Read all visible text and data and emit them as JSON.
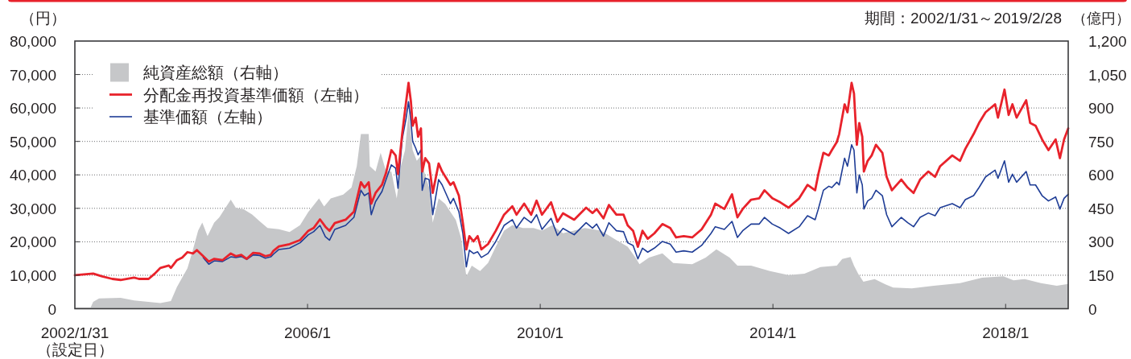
{
  "chart_data": {
    "type": "line",
    "subtitle": "期間：2002/1/31～2019/2/28",
    "ylabel": "（円）",
    "y2label": "（億円）",
    "annotations": [
      "（設定日）"
    ],
    "xlim": [
      "2002-01-31",
      "2019-02-28"
    ],
    "xticks": [
      {
        "value": "2002-01-31",
        "label": "2002/1/31"
      },
      {
        "value": "2006-01-31",
        "label": "2006/1"
      },
      {
        "value": "2010-01-31",
        "label": "2010/1"
      },
      {
        "value": "2014-01-31",
        "label": "2014/1"
      },
      {
        "value": "2018-01-31",
        "label": "2018/1"
      }
    ],
    "ylim": [
      0,
      80000
    ],
    "yticks": [
      0,
      {
        "value": 10000,
        "label": "10,000"
      },
      {
        "value": 20000,
        "label": "20,000"
      },
      {
        "value": 30000,
        "label": "30,000"
      },
      {
        "value": 40000,
        "label": "40,000"
      },
      {
        "value": 50000,
        "label": "50,000"
      },
      {
        "value": 60000,
        "label": "60,000"
      },
      {
        "value": 70000,
        "label": "70,000"
      },
      {
        "value": 80000,
        "label": "80,000"
      }
    ],
    "y2lim": [
      0,
      1200
    ],
    "y2ticks": [
      0,
      150,
      300,
      450,
      600,
      750,
      900,
      {
        "value": 1050,
        "label": "1,050"
      },
      {
        "value": 1200,
        "label": "1,200"
      }
    ],
    "grid": "y",
    "legend": "top left",
    "series": [
      {
        "name": "純資産総額（右軸）",
        "type": "area",
        "axis": "y2",
        "color": "#c6c7c9",
        "x": [
          "2002-01-31",
          "2002-05-10",
          "2002-05-26",
          "2002-07-02",
          "2002-11-14",
          "2003-02-07",
          "2003-07-22",
          "2003-09-26",
          "2003-11-03",
          "2004-01-08",
          "2004-02-12",
          "2004-03-15",
          "2004-04-10",
          "2004-05-13",
          "2004-06-24",
          "2004-07-26",
          "2004-10-06",
          "2004-11-07",
          "2004-12-26",
          "2005-02-17",
          "2005-04-06",
          "2005-05-25",
          "2005-08-04",
          "2005-10-10",
          "2005-12-15",
          "2006-02-05",
          "2006-04-13",
          "2006-05-15",
          "2006-06-26",
          "2006-09-12",
          "2006-11-03",
          "2006-12-06",
          "2007-01-01",
          "2007-02-19",
          "2007-02-26",
          "2007-04-03",
          "2007-05-05",
          "2007-06-08",
          "2007-07-11",
          "2007-08-14",
          "2007-09-09",
          "2007-10-05",
          "2007-10-27",
          "2007-11-22",
          "2007-12-18",
          "2008-01-13",
          "2008-02-02",
          "2008-03-04",
          "2008-03-27",
          "2008-05-03",
          "2008-06-13",
          "2008-07-16",
          "2008-08-19",
          "2008-09-22",
          "2008-10-24",
          "2008-11-27",
          "2009-01-18",
          "2009-03-09",
          "2009-04-27",
          "2009-06-18",
          "2009-08-09",
          "2009-10-14",
          "2009-12-20",
          "2010-02-11",
          "2010-04-17",
          "2010-06-23",
          "2010-11-07",
          "2011-02-16",
          "2011-05-24",
          "2011-08-03",
          "2011-09-21",
          "2011-10-16",
          "2011-12-15",
          "2012-03-08",
          "2012-05-15",
          "2012-09-11",
          "2012-12-05",
          "2013-02-10",
          "2013-05-04",
          "2013-06-22",
          "2013-09-16",
          "2014-01-12",
          "2014-05-09",
          "2014-08-17",
          "2014-11-26",
          "2015-03-08",
          "2015-04-11",
          "2015-06-02",
          "2015-06-24",
          "2015-07-20",
          "2015-08-22",
          "2015-11-01",
          "2016-01-07",
          "2016-02-25",
          "2016-06-21",
          "2016-11-06",
          "2017-04-20",
          "2017-09-05",
          "2018-01-17",
          "2018-03-22",
          "2018-06-01",
          "2018-09-10",
          "2018-12-18",
          "2019-02-28"
        ],
        "values": [
          5,
          5,
          31,
          46,
          49,
          37,
          25,
          34,
          97,
          181,
          266,
          350,
          386,
          326,
          386,
          410,
          489,
          452,
          446,
          422,
          392,
          362,
          356,
          344,
          374,
          434,
          494,
          458,
          494,
          512,
          543,
          639,
          783,
          783,
          639,
          615,
          699,
          615,
          615,
          494,
          639,
          711,
          880,
          711,
          663,
          687,
          615,
          543,
          386,
          494,
          470,
          434,
          398,
          314,
          145,
          193,
          169,
          205,
          278,
          350,
          374,
          362,
          362,
          350,
          374,
          338,
          362,
          350,
          308,
          278,
          229,
          199,
          229,
          248,
          205,
          199,
          229,
          266,
          229,
          193,
          193,
          169,
          151,
          157,
          187,
          193,
          223,
          232,
          193,
          157,
          121,
          133,
          109,
          95,
          91,
          103,
          115,
          139,
          145,
          127,
          133,
          115,
          103,
          111
        ]
      },
      {
        "name": "分配金再投資基準価額（左軸）",
        "color": "#e8222b",
        "x": [
          "2002-01-31",
          "2002-05-26",
          "2002-07-17",
          "2002-09-23",
          "2002-11-14",
          "2003-02-07",
          "2003-03-09",
          "2003-05-09",
          "2003-06-17",
          "2003-07-22",
          "2003-09-13",
          "2003-09-26",
          "2003-11-03",
          "2003-12-06",
          "2004-01-08",
          "2004-02-12",
          "2004-03-07",
          "2004-04-16",
          "2004-05-21",
          "2004-06-24",
          "2004-08-15",
          "2004-10-06",
          "2004-11-07",
          "2004-12-11",
          "2005-01-14",
          "2005-02-24",
          "2005-04-06",
          "2005-05-11",
          "2005-06-14",
          "2005-07-01",
          "2005-08-04",
          "2005-10-10",
          "2005-12-15",
          "2006-02-05",
          "2006-03-10",
          "2006-04-19",
          "2006-05-23",
          "2006-06-18",
          "2006-07-21",
          "2006-09-27",
          "2006-11-18",
          "2007-01-01",
          "2007-01-23",
          "2007-02-19",
          "2007-03-07",
          "2007-04-03",
          "2007-05-13",
          "2007-06-08",
          "2007-07-11",
          "2007-08-07",
          "2007-08-22",
          "2007-09-17",
          "2007-10-12",
          "2007-10-27",
          "2007-11-11",
          "2007-11-22",
          "2007-12-11",
          "2007-12-26",
          "2008-01-13",
          "2008-01-21",
          "2008-02-09",
          "2008-03-04",
          "2008-03-27",
          "2008-05-03",
          "2008-05-25",
          "2008-07-16",
          "2008-08-04",
          "2008-09-07",
          "2008-10-02",
          "2008-10-24",
          "2008-11-12",
          "2008-12-08",
          "2009-01-03",
          "2009-01-26",
          "2009-03-09",
          "2009-04-27",
          "2009-06-18",
          "2009-08-09",
          "2009-09-04",
          "2009-10-22",
          "2009-12-05",
          "2010-01-08",
          "2010-02-11",
          "2010-04-09",
          "2010-05-19",
          "2010-06-23",
          "2010-09-01",
          "2010-11-15",
          "2010-12-25",
          "2011-01-20",
          "2011-03-04",
          "2011-04-07",
          "2011-05-24",
          "2011-07-08",
          "2011-08-03",
          "2011-09-06",
          "2011-10-06",
          "2011-11-04",
          "2011-12-07",
          "2012-01-17",
          "2012-03-08",
          "2012-04-26",
          "2012-06-02",
          "2012-07-20",
          "2012-09-11",
          "2012-11-09",
          "2013-01-07",
          "2013-02-03",
          "2013-04-01",
          "2013-05-19",
          "2013-06-22",
          "2013-07-25",
          "2013-09-16",
          "2013-11-06",
          "2013-12-09",
          "2014-01-27",
          "2014-03-18",
          "2014-05-09",
          "2014-07-15",
          "2014-09-05",
          "2014-10-23",
          "2014-11-12",
          "2014-12-14",
          "2015-01-17",
          "2015-02-05",
          "2015-03-08",
          "2015-03-23",
          "2015-04-26",
          "2015-05-14",
          "2015-06-09",
          "2015-06-24",
          "2015-07-12",
          "2015-07-27",
          "2015-08-15",
          "2015-08-25",
          "2015-09-18",
          "2015-10-13",
          "2015-11-09",
          "2015-12-19",
          "2016-01-15",
          "2016-02-17",
          "2016-04-16",
          "2016-05-26",
          "2016-07-02",
          "2016-08-12",
          "2016-10-03",
          "2016-11-14",
          "2016-12-16",
          "2017-03-02",
          "2017-04-20",
          "2017-05-23",
          "2017-07-14",
          "2017-08-17",
          "2017-09-27",
          "2017-11-26",
          "2017-12-14",
          "2018-01-24",
          "2018-02-19",
          "2018-03-15",
          "2018-04-10",
          "2018-06-09",
          "2018-07-04",
          "2018-08-07",
          "2018-09-17",
          "2018-10-27",
          "2018-12-11",
          "2019-01-07",
          "2019-02-02",
          "2019-02-28"
        ],
        "values": [
          10000,
          10500,
          9700,
          8900,
          8600,
          9300,
          8900,
          8900,
          10500,
          12200,
          12900,
          12200,
          14500,
          15300,
          16900,
          16500,
          17500,
          15700,
          14100,
          14900,
          14500,
          16500,
          15700,
          16100,
          14900,
          16700,
          16500,
          15700,
          16100,
          17300,
          18600,
          19300,
          20500,
          23300,
          24100,
          26700,
          24500,
          23300,
          25600,
          26600,
          29000,
          37800,
          36200,
          37800,
          31400,
          34600,
          37000,
          40600,
          47400,
          45800,
          40200,
          52200,
          61900,
          67500,
          61900,
          54700,
          57100,
          51400,
          53900,
          41000,
          45000,
          43400,
          34600,
          43400,
          41000,
          37000,
          37800,
          33800,
          25700,
          17700,
          21700,
          20100,
          21700,
          17700,
          19300,
          23300,
          28100,
          30600,
          28100,
          31400,
          28100,
          32300,
          28100,
          31800,
          26000,
          28500,
          26600,
          30200,
          28600,
          29800,
          27000,
          31000,
          28100,
          28100,
          24900,
          23300,
          18500,
          23300,
          20900,
          22500,
          25300,
          24100,
          21300,
          21700,
          21300,
          23700,
          28100,
          31400,
          29800,
          34200,
          27300,
          29800,
          32600,
          33000,
          35400,
          33000,
          31800,
          30200,
          33000,
          37000,
          35400,
          40200,
          46600,
          45800,
          47400,
          49800,
          52200,
          61100,
          58700,
          67500,
          64300,
          49000,
          55500,
          51400,
          41000,
          44200,
          45800,
          49000,
          46600,
          39400,
          35400,
          38600,
          36200,
          34600,
          38600,
          41000,
          39400,
          42600,
          45800,
          44200,
          47800,
          52200,
          55500,
          58700,
          61100,
          57100,
          65500,
          57900,
          61100,
          57100,
          62300,
          55500,
          54700,
          50600,
          47400,
          50600,
          45000,
          50600,
          53900
        ]
      },
      {
        "name": "基準価額（左軸）",
        "color": "#1f3d96",
        "x": [
          "2004-04-16",
          "2004-05-21",
          "2004-06-24",
          "2004-08-15",
          "2004-10-06",
          "2004-11-07",
          "2004-12-11",
          "2005-01-14",
          "2005-02-24",
          "2005-04-06",
          "2005-05-11",
          "2005-06-14",
          "2005-07-01",
          "2005-08-04",
          "2005-10-10",
          "2005-12-15",
          "2006-02-05",
          "2006-03-10",
          "2006-04-19",
          "2006-05-23",
          "2006-06-18",
          "2006-07-21",
          "2006-09-27",
          "2006-11-18",
          "2007-01-01",
          "2007-01-23",
          "2007-02-19",
          "2007-03-07",
          "2007-04-03",
          "2007-05-13",
          "2007-06-08",
          "2007-07-11",
          "2007-08-07",
          "2007-08-22",
          "2007-09-17",
          "2007-10-12",
          "2007-10-27",
          "2007-11-11",
          "2007-11-22",
          "2007-12-11",
          "2007-12-26",
          "2008-01-13",
          "2008-01-21",
          "2008-02-09",
          "2008-03-04",
          "2008-03-27",
          "2008-05-03",
          "2008-05-25",
          "2008-07-16",
          "2008-08-04",
          "2008-09-07",
          "2008-10-02",
          "2008-10-24",
          "2008-11-12",
          "2008-12-08",
          "2009-01-03",
          "2009-01-26",
          "2009-03-09",
          "2009-04-27",
          "2009-06-18",
          "2009-08-09",
          "2009-09-04",
          "2009-10-22",
          "2009-12-05",
          "2010-01-08",
          "2010-02-11",
          "2010-04-09",
          "2010-05-19",
          "2010-06-23",
          "2010-09-01",
          "2010-11-15",
          "2010-12-25",
          "2011-01-20",
          "2011-03-04",
          "2011-04-07",
          "2011-05-24",
          "2011-07-08",
          "2011-08-03",
          "2011-09-06",
          "2011-10-06",
          "2011-11-04",
          "2011-12-07",
          "2012-01-17",
          "2012-03-08",
          "2012-04-26",
          "2012-06-02",
          "2012-07-20",
          "2012-09-11",
          "2012-11-09",
          "2013-01-07",
          "2013-02-03",
          "2013-04-01",
          "2013-05-19",
          "2013-06-22",
          "2013-07-25",
          "2013-09-16",
          "2013-11-06",
          "2013-12-09",
          "2014-01-27",
          "2014-03-18",
          "2014-05-09",
          "2014-07-15",
          "2014-09-05",
          "2014-10-23",
          "2014-11-12",
          "2014-12-14",
          "2015-01-17",
          "2015-02-05",
          "2015-03-08",
          "2015-03-23",
          "2015-04-26",
          "2015-05-14",
          "2015-06-09",
          "2015-06-24",
          "2015-07-12",
          "2015-07-27",
          "2015-08-15",
          "2015-08-25",
          "2015-09-18",
          "2015-10-13",
          "2015-11-09",
          "2015-12-19",
          "2016-01-15",
          "2016-02-17",
          "2016-04-16",
          "2016-05-26",
          "2016-07-02",
          "2016-08-12",
          "2016-10-03",
          "2016-11-14",
          "2016-12-16",
          "2017-03-02",
          "2017-04-20",
          "2017-05-23",
          "2017-07-14",
          "2017-08-17",
          "2017-09-27",
          "2017-11-26",
          "2017-12-14",
          "2018-01-24",
          "2018-02-19",
          "2018-03-15",
          "2018-04-10",
          "2018-06-09",
          "2018-07-04",
          "2018-08-07",
          "2018-09-17",
          "2018-10-27",
          "2018-12-11",
          "2019-01-07",
          "2019-02-02",
          "2019-02-28"
        ],
        "values": [
          15300,
          13300,
          14300,
          14100,
          15500,
          15300,
          15600,
          14700,
          16100,
          15900,
          15100,
          15500,
          16300,
          17700,
          18100,
          19700,
          22100,
          23000,
          24900,
          21500,
          20500,
          23700,
          24900,
          27300,
          35400,
          33800,
          34600,
          28100,
          32000,
          35000,
          38600,
          43000,
          42000,
          36000,
          50600,
          57000,
          61900,
          56000,
          50000,
          48000,
          46000,
          47500,
          35400,
          39000,
          38600,
          28100,
          38600,
          37000,
          31400,
          33000,
          29000,
          22500,
          12500,
          17500,
          16500,
          17000,
          15300,
          16500,
          20100,
          24900,
          26600,
          24100,
          27300,
          25700,
          28100,
          23700,
          27000,
          21900,
          24000,
          22100,
          25700,
          24100,
          25300,
          21700,
          25700,
          23300,
          23000,
          19700,
          18900,
          14900,
          18100,
          16900,
          18100,
          20100,
          19300,
          16900,
          17300,
          16900,
          18900,
          22500,
          24500,
          23700,
          26100,
          21300,
          23300,
          25300,
          25300,
          27300,
          25300,
          24100,
          22500,
          24500,
          27800,
          26600,
          29800,
          35400,
          36600,
          36200,
          37800,
          37000,
          45000,
          42600,
          49000,
          47400,
          34600,
          40000,
          37000,
          29800,
          32200,
          33000,
          35400,
          33800,
          28100,
          24500,
          27300,
          25700,
          24500,
          27300,
          28600,
          27800,
          30200,
          31400,
          30200,
          32600,
          33800,
          36200,
          39400,
          41400,
          39000,
          44200,
          37800,
          40200,
          37800,
          41000,
          37000,
          37000,
          33800,
          32200,
          33400,
          29800,
          33000,
          34200
        ]
      }
    ]
  }
}
